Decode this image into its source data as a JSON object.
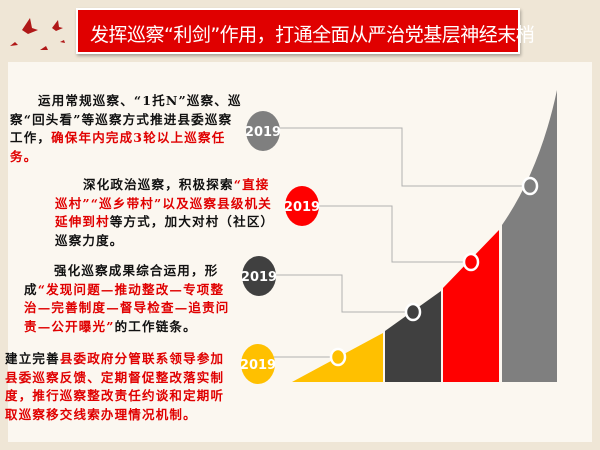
{
  "title": "发挥巡察“利剑”作用，打通全面从严治党基层神经末梢",
  "colors": {
    "title_bg": "#e00000",
    "gray": "#7f7f7f",
    "red": "#ff0000",
    "dark": "#404040",
    "yellow": "#ffc000",
    "highlight_text": "#e00000"
  },
  "icons": {
    "decoration": "flying-doves-icon"
  },
  "items": [
    {
      "year": "2019",
      "color": "#7f7f7f",
      "segments": [
        {
          "text": "运用常规巡察、“1托N”巡察、巡察“回头看”等巡察方式推进县委巡察工作，",
          "red": false
        },
        {
          "text": "确保年内完成3轮以上巡察任务。",
          "red": true
        }
      ]
    },
    {
      "year": "2019",
      "color": "#ff0000",
      "segments": [
        {
          "text": "深化政治巡察，积极探索",
          "red": false
        },
        {
          "text": "“直接巡村”“巡乡带村”以及巡察县级机关延伸到村",
          "red": true
        },
        {
          "text": "等方式，加大对村（社区）巡察力度。",
          "red": false
        }
      ]
    },
    {
      "year": "2019",
      "color": "#404040",
      "segments": [
        {
          "text": "强化巡察成果综合运用，形成",
          "red": false
        },
        {
          "text": "“发现问题—推动整改—专项整治—完善制度—督导检查—追责问责—公开曝光”",
          "red": true
        },
        {
          "text": "的工作链条。",
          "red": false
        }
      ]
    },
    {
      "year": "2019",
      "color": "#ffc000",
      "segments": [
        {
          "text": "建立完善",
          "red": false
        },
        {
          "text": "县委政府分管联系领导参加县委巡察反馈、定期督促整改落实制度，推行巡察整改责任约谈和定期听取巡察移交线索办理情况机制。",
          "red": true
        }
      ]
    }
  ]
}
